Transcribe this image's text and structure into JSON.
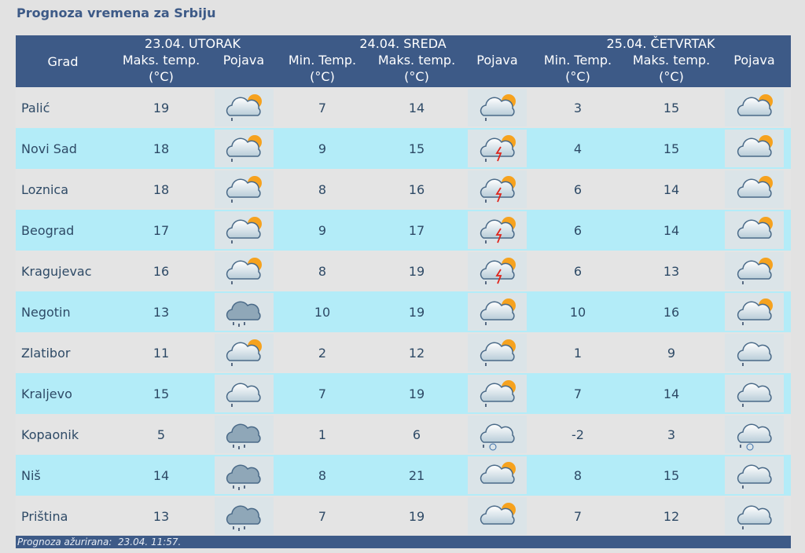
{
  "header": {
    "title": "Prognoza vremena za Srbiju"
  },
  "table": {
    "groups": [
      "23.04. UTORAK",
      "24.04. SREDA",
      "25.04. ČETVRTAK"
    ],
    "columns": [
      "Grad",
      "Maks. temp. (°C)",
      "Pojava",
      "Min. Temp. (°C)",
      "Maks. temp. (°C)",
      "Pojava",
      "Min. Temp. (°C)",
      "Maks. temp. (°C)",
      "Pojava"
    ],
    "rows": [
      [
        "Palić",
        19,
        7,
        14,
        3,
        15
      ],
      [
        "Novi Sad",
        18,
        9,
        15,
        4,
        15
      ],
      [
        "Loznica",
        18,
        8,
        16,
        6,
        14
      ],
      [
        "Beograd",
        17,
        9,
        17,
        6,
        14
      ],
      [
        "Kragujevac",
        16,
        8,
        19,
        6,
        13
      ],
      [
        "Negotin",
        13,
        10,
        19,
        10,
        16
      ],
      [
        "Zlatibor",
        11,
        2,
        12,
        1,
        9
      ],
      [
        "Kraljevo",
        15,
        7,
        19,
        7,
        14
      ],
      [
        "Kopaonik",
        5,
        1,
        6,
        -2,
        3
      ],
      [
        "Niš",
        14,
        8,
        21,
        8,
        15
      ],
      [
        "Priština",
        13,
        7,
        19,
        7,
        12
      ]
    ]
  },
  "footer": {
    "updated": "Prognoza ažurirana:  23.04. 11:57."
  }
}
